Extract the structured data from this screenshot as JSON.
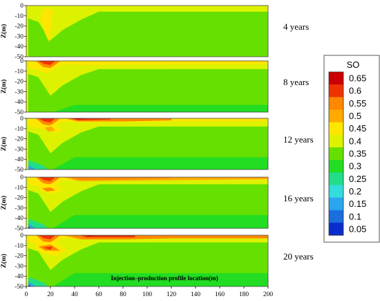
{
  "chart_data": {
    "type": "heatmap",
    "subtype": "filled-contour",
    "variable": "SO",
    "xlabel": "Injection–production profile location(m)",
    "ylabel": "Z(m)",
    "x_ticks": [
      0,
      20,
      40,
      60,
      80,
      100,
      120,
      140,
      160,
      180,
      200
    ],
    "y_ticks": [
      0,
      -10,
      -20,
      -30,
      -40,
      -50
    ],
    "xlim": [
      0,
      200
    ],
    "ylim": [
      -50,
      0
    ],
    "colorbar": {
      "title": "SO",
      "levels": [
        "0.65",
        "0.6",
        "0.55",
        "0.5",
        "0.45",
        "0.4",
        "0.35",
        "0.3",
        "0.25",
        "0.2",
        "0.15",
        "0.1",
        "0.05"
      ],
      "colors": [
        "#cc0000",
        "#ee3300",
        "#ff8800",
        "#ffaa00",
        "#ffe600",
        "#ddf200",
        "#66e000",
        "#22dd22",
        "#22dd88",
        "#33dddd",
        "#2aa5ee",
        "#1a6edd",
        "#0a2ecc"
      ]
    },
    "panels": [
      {
        "label": "4 years"
      },
      {
        "label": "8 years"
      },
      {
        "label": "12 years"
      },
      {
        "label": "16 years"
      },
      {
        "label": "20 years"
      }
    ]
  }
}
